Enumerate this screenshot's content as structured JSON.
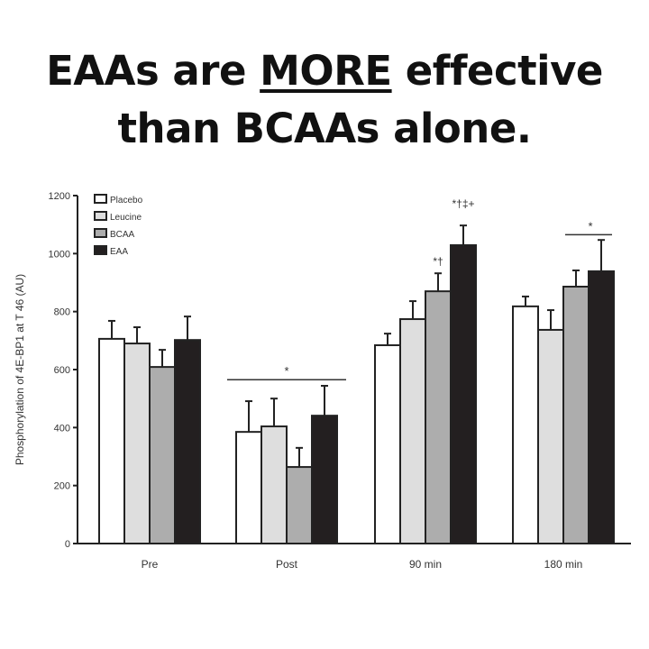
{
  "headline": {
    "line1_a": "EAAs are ",
    "line1_emph": "MORE",
    "line1_b": " effective",
    "line2": "than BCAAs alone."
  },
  "chart_data": {
    "type": "bar",
    "title": "",
    "xlabel": "",
    "ylabel": "Phosphorylation of 4E-BP1 at T 46 (AU)",
    "ylim": [
      0,
      1200
    ],
    "yticks": [
      0,
      200,
      400,
      600,
      800,
      1000,
      1200
    ],
    "categories": [
      "Pre",
      "Post",
      "90 min",
      "180 min"
    ],
    "legend_position": "top-left",
    "grid": false,
    "series": [
      {
        "name": "Placebo",
        "color": "#ffffff",
        "values": [
          706,
          385,
          684,
          818
        ],
        "error_upper": [
          768,
          491,
          724,
          852
        ]
      },
      {
        "name": "Leucine",
        "color": "#dedede",
        "values": [
          690,
          404,
          774,
          737
        ],
        "error_upper": [
          746,
          500,
          836,
          805
        ]
      },
      {
        "name": "BCAA",
        "color": "#adadad",
        "values": [
          609,
          264,
          870,
          886
        ],
        "error_upper": [
          668,
          330,
          932,
          942
        ]
      },
      {
        "name": "EAA",
        "color": "#231f20",
        "values": [
          702,
          441,
          1029,
          939
        ],
        "error_upper": [
          783,
          544,
          1097,
          1047
        ]
      }
    ],
    "annotations": [
      {
        "text": "*",
        "category": "Post",
        "type": "bracket-all",
        "y": 590
      },
      {
        "text": "*†",
        "category": "90 min",
        "series": "BCAA",
        "y": 960
      },
      {
        "text": "*†‡+",
        "category": "90 min",
        "series": "EAA",
        "y": 1160
      },
      {
        "text": "*",
        "category": "180 min",
        "type": "bracket-right",
        "y": 1090
      }
    ]
  }
}
